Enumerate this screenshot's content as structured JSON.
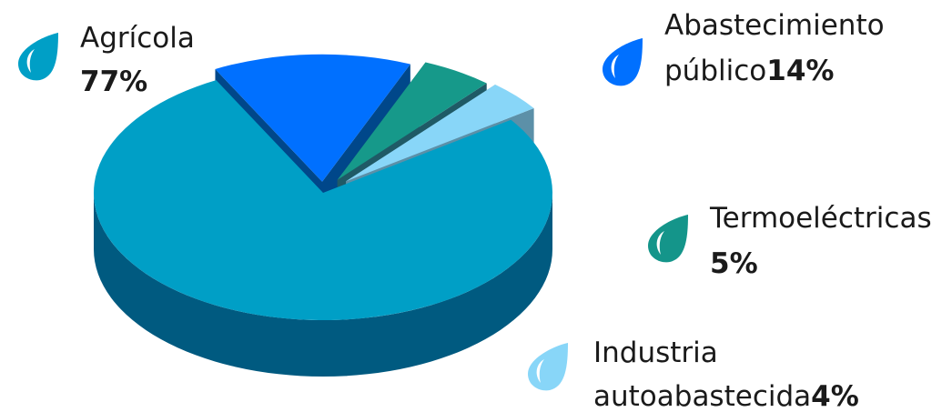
{
  "chart_data": {
    "type": "pie",
    "style": "3d-exploded",
    "legend": "none",
    "slices": [
      {
        "key": "agricola",
        "label_lines": [
          "Agrícola"
        ],
        "percent_text": "77%",
        "value": 77,
        "color": "#009fc6",
        "side_color": "#005a80",
        "icon_color": "#009fc6"
      },
      {
        "key": "abastecimiento",
        "label_lines": [
          "Abastecimiento",
          "público"
        ],
        "percent_text": "14%",
        "value": 14,
        "color": "#0070ff",
        "side_color": "#00478a",
        "icon_color": "#0070ff"
      },
      {
        "key": "termoelectricas",
        "label_lines": [
          "Termoeléctricas"
        ],
        "percent_text": "5%",
        "value": 5,
        "color": "#16998a",
        "side_color": "#1f5a66",
        "icon_color": "#14958a"
      },
      {
        "key": "industria",
        "label_lines": [
          "Industria",
          "autoabastecida"
        ],
        "percent_text": "4%",
        "value": 4,
        "color": "#88d6f8",
        "side_color": "#5c90a8",
        "icon_color": "#88d6f8"
      }
    ]
  }
}
